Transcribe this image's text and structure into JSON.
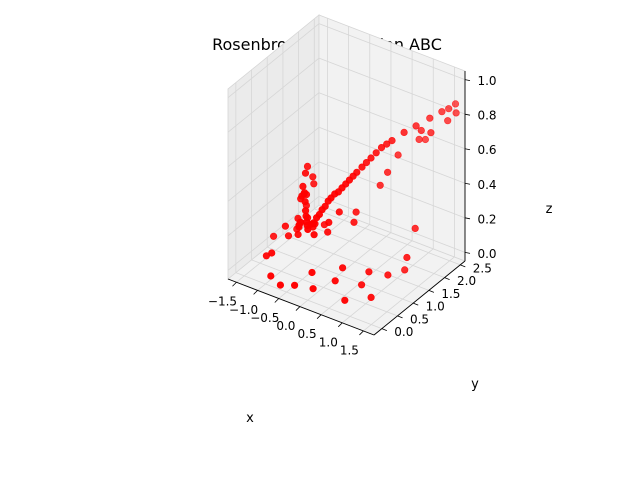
{
  "chart_data": {
    "type": "scatter",
    "projection": "3d",
    "title": "Rosenbrock #1 function ABC",
    "xlabel": "x",
    "ylabel": "y",
    "zlabel": "z",
    "xlim": [
      -1.7,
      1.75
    ],
    "ylim": [
      -0.25,
      2.65
    ],
    "zlim": [
      -0.05,
      1.05
    ],
    "xticks": [
      "−1.5",
      "−1.0",
      "−0.5",
      "0.0",
      "0.5",
      "1.0",
      "1.5"
    ],
    "xtick_values": [
      -1.5,
      -1.0,
      -0.5,
      0.0,
      0.5,
      1.0,
      1.5
    ],
    "yticks": [
      "0.0",
      "0.5",
      "1.0",
      "1.5",
      "2.0",
      "2.5"
    ],
    "ytick_values": [
      0.0,
      0.5,
      1.0,
      1.5,
      2.0,
      2.5
    ],
    "zticks": [
      "0.0",
      "0.2",
      "0.4",
      "0.6",
      "0.8",
      "1.0"
    ],
    "ztick_values": [
      0.0,
      0.2,
      0.4,
      0.6,
      0.8,
      1.0
    ],
    "grid": true,
    "marker_color": "#ff0000",
    "pane_color": "#f2f2f2",
    "grid_color": "#d6d6d6",
    "series": [
      {
        "points": [
          [
            -0.6,
            0.8,
            0.55
          ],
          [
            -0.5,
            0.6,
            0.55
          ],
          [
            -0.55,
            0.9,
            0.48
          ],
          [
            -0.6,
            1.0,
            0.42
          ],
          [
            -0.4,
            0.5,
            0.45
          ],
          [
            -0.3,
            0.3,
            0.5
          ],
          [
            -0.2,
            0.2,
            0.42
          ],
          [
            -0.1,
            0.1,
            0.38
          ],
          [
            0.0,
            0.0,
            0.36
          ],
          [
            0.1,
            0.05,
            0.4
          ],
          [
            0.2,
            0.1,
            0.45
          ],
          [
            0.3,
            0.15,
            0.5
          ],
          [
            0.4,
            0.2,
            0.55
          ],
          [
            0.5,
            0.3,
            0.58
          ],
          [
            0.6,
            0.4,
            0.62
          ],
          [
            0.7,
            0.5,
            0.66
          ],
          [
            0.8,
            0.65,
            0.7
          ],
          [
            0.9,
            0.8,
            0.74
          ],
          [
            1.0,
            1.0,
            0.78
          ],
          [
            1.1,
            1.2,
            0.8
          ],
          [
            1.2,
            1.45,
            0.82
          ],
          [
            1.3,
            1.7,
            0.83
          ],
          [
            1.4,
            2.0,
            0.84
          ],
          [
            1.5,
            2.25,
            0.85
          ],
          [
            1.55,
            2.4,
            0.85
          ],
          [
            1.6,
            2.55,
            0.86
          ],
          [
            0.95,
            0.9,
            0.76
          ],
          [
            1.05,
            1.1,
            0.79
          ],
          [
            0.85,
            0.72,
            0.72
          ],
          [
            0.75,
            0.55,
            0.68
          ],
          [
            0.65,
            0.45,
            0.64
          ],
          [
            0.55,
            0.35,
            0.6
          ],
          [
            0.45,
            0.25,
            0.57
          ],
          [
            0.35,
            0.18,
            0.53
          ],
          [
            0.25,
            0.12,
            0.48
          ],
          [
            0.15,
            0.08,
            0.43
          ],
          [
            0.05,
            0.03,
            0.39
          ],
          [
            -0.05,
            0.05,
            0.37
          ],
          [
            -0.15,
            0.15,
            0.4
          ],
          [
            -0.25,
            0.25,
            0.46
          ],
          [
            -0.35,
            0.35,
            0.48
          ],
          [
            -0.45,
            0.45,
            0.5
          ],
          [
            -0.7,
            0.9,
            0.3
          ],
          [
            -0.75,
            0.7,
            0.25
          ],
          [
            -0.8,
            0.8,
            0.18
          ],
          [
            -0.9,
            0.6,
            0.15
          ],
          [
            -1.0,
            1.0,
            0.12
          ],
          [
            -1.1,
            1.2,
            0.1
          ],
          [
            -1.2,
            1.4,
            0.08
          ],
          [
            -0.6,
            0.5,
            0.2
          ],
          [
            -0.5,
            0.4,
            0.28
          ],
          [
            -0.4,
            0.3,
            0.32
          ],
          [
            -0.3,
            0.4,
            0.34
          ],
          [
            -0.2,
            0.5,
            0.3
          ],
          [
            -0.1,
            0.3,
            0.32
          ],
          [
            0.0,
            0.2,
            0.3
          ],
          [
            0.2,
            0.4,
            0.36
          ],
          [
            0.3,
            0.6,
            0.4
          ],
          [
            0.1,
            0.5,
            0.28
          ],
          [
            -0.2,
            0.8,
            0.25
          ],
          [
            0.4,
            1.0,
            0.35
          ],
          [
            0.6,
            1.5,
            0.45
          ],
          [
            0.8,
            1.8,
            0.6
          ],
          [
            1.0,
            2.2,
            0.65
          ],
          [
            1.2,
            2.0,
            0.75
          ],
          [
            1.5,
            1.9,
            0.78
          ],
          [
            1.6,
            2.3,
            0.8
          ],
          [
            1.65,
            2.5,
            0.82
          ],
          [
            1.5,
            1.4,
            0.3
          ],
          [
            1.6,
            1.0,
            0.2
          ],
          [
            1.3,
            0.8,
            0.1
          ],
          [
            0.9,
            0.5,
            0.05
          ],
          [
            0.5,
            0.2,
            0.08
          ],
          [
            0.2,
            -0.1,
            0.05
          ],
          [
            -0.2,
            -0.15,
            0.04
          ],
          [
            -0.8,
            -0.1,
            0.03
          ],
          [
            -1.2,
            0.3,
            0.05
          ],
          [
            -1.4,
            0.8,
            0.07
          ],
          [
            -1.0,
            0.2,
            0.1
          ],
          [
            0.1,
            0.0,
            0.12
          ],
          [
            0.6,
            0.3,
            0.15
          ],
          [
            1.0,
            0.6,
            0.12
          ],
          [
            1.4,
            1.2,
            0.08
          ],
          [
            1.2,
            0.4,
            0.02
          ],
          [
            0.8,
            0.1,
            0.01
          ],
          [
            -0.5,
            -0.2,
            0.02
          ],
          [
            -0.9,
            0.5,
            0.22
          ],
          [
            -0.65,
            0.65,
            0.38
          ],
          [
            -0.55,
            0.55,
            0.42
          ],
          [
            0.7,
            1.6,
            0.52
          ],
          [
            1.0,
            2.4,
            0.62
          ],
          [
            0.5,
            0.8,
            0.33
          ]
        ]
      }
    ]
  }
}
